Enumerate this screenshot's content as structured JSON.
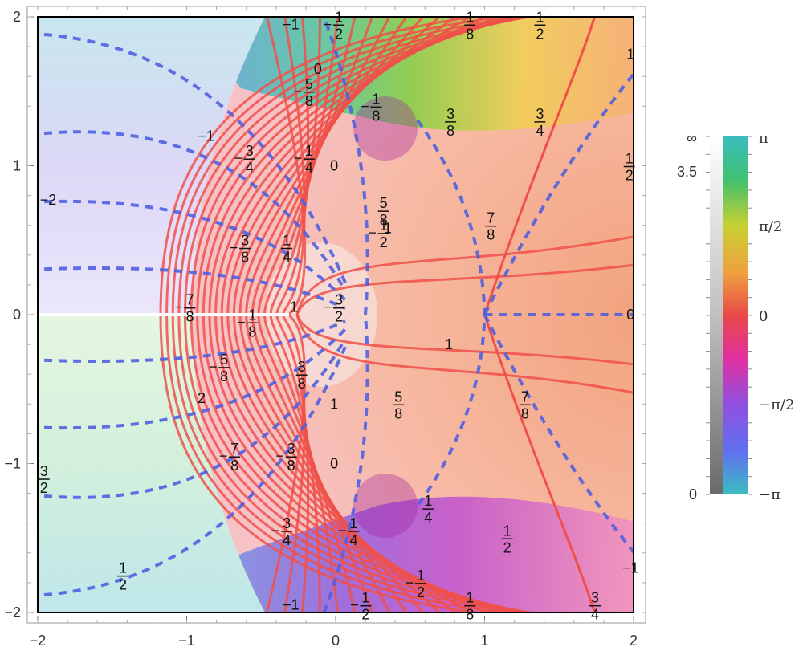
{
  "chart_data": {
    "type": "heatmap",
    "description_kind": "domain coloring with labelled contour lines",
    "x_range": [
      -2,
      2
    ],
    "y_range": [
      -2,
      2
    ],
    "x_ticks": [
      "-2",
      "-1",
      "0",
      "1",
      "2"
    ],
    "y_ticks": [
      "2",
      "1",
      "0",
      "-1",
      "-2"
    ],
    "branch_cut": {
      "from": [
        -2,
        0
      ],
      "to": [
        -0.3,
        0
      ],
      "color": "#ffffff"
    },
    "critical_point": [
      1,
      0
    ],
    "solid_contours": {
      "color": "#f0504a",
      "count": 22
    },
    "dashed_contours": {
      "color": "#5060e0",
      "count": 14
    },
    "contour_labels": [
      {
        "x": -0.3,
        "y": 1.95,
        "num": "1",
        "den": "",
        "sign": "-"
      },
      {
        "x": 0.0,
        "y": 1.95,
        "num": "1",
        "den": "2",
        "sign": "-"
      },
      {
        "x": 0.88,
        "y": 1.95,
        "num": "1",
        "den": "8",
        "sign": ""
      },
      {
        "x": 1.35,
        "y": 1.95,
        "num": "1",
        "den": "2",
        "sign": ""
      },
      {
        "x": -0.2,
        "y": 1.5,
        "num": "5",
        "den": "8",
        "sign": "-"
      },
      {
        "x": -0.12,
        "y": 1.65,
        "num": "0",
        "den": "",
        "sign": ""
      },
      {
        "x": 0.25,
        "y": 1.4,
        "num": "1",
        "den": "8",
        "sign": "-"
      },
      {
        "x": 0.75,
        "y": 1.3,
        "num": "3",
        "den": "8",
        "sign": ""
      },
      {
        "x": 1.35,
        "y": 1.3,
        "num": "3",
        "den": "4",
        "sign": ""
      },
      {
        "x": -0.87,
        "y": 1.2,
        "num": "1",
        "den": "",
        "sign": "-"
      },
      {
        "x": -0.6,
        "y": 1.05,
        "num": "3",
        "den": "4",
        "sign": "-"
      },
      {
        "x": -0.2,
        "y": 1.05,
        "num": "1",
        "den": "4",
        "sign": "-"
      },
      {
        "x": -0.01,
        "y": 1.0,
        "num": "0",
        "den": "",
        "sign": ""
      },
      {
        "x": 1.95,
        "y": 1.0,
        "num": "1",
        "den": "2",
        "sign": ""
      },
      {
        "x": -1.93,
        "y": 0.77,
        "num": "2",
        "den": "",
        "sign": "-"
      },
      {
        "x": 0.3,
        "y": 0.7,
        "num": "5",
        "den": "8",
        "sign": ""
      },
      {
        "x": 0.3,
        "y": 0.55,
        "num": "1",
        "den": "2",
        "sign": "-"
      },
      {
        "x": 0.35,
        "y": 0.58,
        "num": "1",
        "den": "",
        "sign": ""
      },
      {
        "x": 1.02,
        "y": 0.6,
        "num": "7",
        "den": "8",
        "sign": ""
      },
      {
        "x": -0.63,
        "y": 0.45,
        "num": "3",
        "den": "8",
        "sign": "-"
      },
      {
        "x": -0.35,
        "y": 0.45,
        "num": "1",
        "den": "4",
        "sign": ""
      },
      {
        "x": -1.0,
        "y": 0.05,
        "num": "7",
        "den": "8",
        "sign": "-"
      },
      {
        "x": -0.28,
        "y": 0.05,
        "num": "1",
        "den": "",
        "sign": ""
      },
      {
        "x": 0.0,
        "y": 0.05,
        "num": "3",
        "den": "2",
        "sign": "-"
      },
      {
        "x": 1.98,
        "y": 0.0,
        "num": "0",
        "den": "",
        "sign": ""
      },
      {
        "x": -0.58,
        "y": -0.05,
        "num": "1",
        "den": "8",
        "sign": "-"
      },
      {
        "x": 0.76,
        "y": -0.2,
        "num": "1",
        "den": "",
        "sign": ""
      },
      {
        "x": -0.77,
        "y": -0.35,
        "num": "5",
        "den": "8",
        "sign": "-"
      },
      {
        "x": -0.25,
        "y": -0.4,
        "num": "3",
        "den": "8",
        "sign": ""
      },
      {
        "x": -0.9,
        "y": -0.56,
        "num": "2",
        "den": "",
        "sign": ""
      },
      {
        "x": -0.01,
        "y": -0.6,
        "num": "1",
        "den": "",
        "sign": ""
      },
      {
        "x": 0.4,
        "y": -0.6,
        "num": "5",
        "den": "8",
        "sign": ""
      },
      {
        "x": 1.25,
        "y": -0.6,
        "num": "7",
        "den": "8",
        "sign": ""
      },
      {
        "x": -0.7,
        "y": -0.95,
        "num": "7",
        "den": "8",
        "sign": "-"
      },
      {
        "x": -0.32,
        "y": -0.95,
        "num": "3",
        "den": "8",
        "sign": "-"
      },
      {
        "x": -0.01,
        "y": -1.0,
        "num": "0",
        "den": "",
        "sign": ""
      },
      {
        "x": -1.98,
        "y": -1.1,
        "num": "3",
        "den": "2",
        "sign": ""
      },
      {
        "x": 0.6,
        "y": -1.3,
        "num": "1",
        "den": "4",
        "sign": ""
      },
      {
        "x": -0.35,
        "y": -1.45,
        "num": "3",
        "den": "4",
        "sign": "-"
      },
      {
        "x": 0.1,
        "y": -1.45,
        "num": "1",
        "den": "4",
        "sign": "-"
      },
      {
        "x": 1.13,
        "y": -1.5,
        "num": "1",
        "den": "2",
        "sign": ""
      },
      {
        "x": -1.45,
        "y": -1.75,
        "num": "1",
        "den": "2",
        "sign": ""
      },
      {
        "x": 0.55,
        "y": -1.8,
        "num": "1",
        "den": "2",
        "sign": "-"
      },
      {
        "x": 1.98,
        "y": -1.7,
        "num": "1",
        "den": "",
        "sign": "-"
      },
      {
        "x": -0.3,
        "y": -1.95,
        "num": "1",
        "den": "",
        "sign": "-"
      },
      {
        "x": 0.18,
        "y": -1.95,
        "num": "1",
        "den": "2",
        "sign": "-"
      },
      {
        "x": 0.88,
        "y": -1.95,
        "num": "1",
        "den": "8",
        "sign": ""
      },
      {
        "x": 1.72,
        "y": -1.95,
        "num": "3",
        "den": "4",
        "sign": ""
      },
      {
        "x": 1.98,
        "y": 1.75,
        "num": "1",
        "den": "",
        "sign": ""
      }
    ],
    "legend": {
      "modulus_bar": {
        "top_label": "∞",
        "mid_label": "3.5",
        "bottom_label": "0"
      },
      "phase_bar": {
        "labels": [
          "π",
          "π/2",
          "0",
          "−π/2",
          "−π"
        ]
      }
    }
  }
}
